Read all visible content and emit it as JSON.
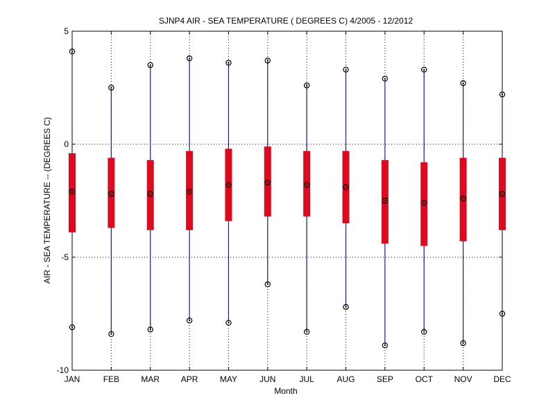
{
  "chart_data": {
    "type": "box",
    "title": "SJNP4  AIR - SEA TEMPERATURE ( DEGREES C) 4/2005 - 12/2012",
    "xlabel": "Month",
    "ylabel": "AIR - SEA TEMPERATURE -- (DEGREES C)",
    "ylim": [
      -10,
      5
    ],
    "yticks": [
      "5",
      "0",
      "-5",
      "-10"
    ],
    "grid": true,
    "categories": [
      "JAN",
      "FEB",
      "MAR",
      "APR",
      "MAY",
      "JUN",
      "JUL",
      "AUG",
      "SEP",
      "OCT",
      "NOV",
      "DEC"
    ],
    "max": [
      4.1,
      2.5,
      3.5,
      3.8,
      3.6,
      3.7,
      2.6,
      3.3,
      2.9,
      3.3,
      2.7,
      2.2
    ],
    "q3": [
      -0.4,
      -0.6,
      -0.7,
      -0.3,
      -0.2,
      -0.1,
      -0.3,
      -0.3,
      -0.7,
      -0.8,
      -0.6,
      -0.6
    ],
    "median": [
      -2.1,
      -2.2,
      -2.2,
      -2.1,
      -1.8,
      -1.7,
      -1.8,
      -1.9,
      -2.5,
      -2.6,
      -2.4,
      -2.2
    ],
    "q1": [
      -3.9,
      -3.7,
      -3.8,
      -3.8,
      -3.4,
      -3.2,
      -3.2,
      -3.5,
      -4.4,
      -4.5,
      -4.3,
      -3.8
    ],
    "min": [
      -8.1,
      -8.4,
      -8.2,
      -7.8,
      -7.9,
      -6.2,
      -8.3,
      -7.2,
      -8.9,
      -8.3,
      -8.8,
      -7.5
    ],
    "colors": {
      "whisker": "#1c1c8c",
      "box": "#dd0b1f",
      "marker": "#000000",
      "grid": "#000000"
    }
  }
}
